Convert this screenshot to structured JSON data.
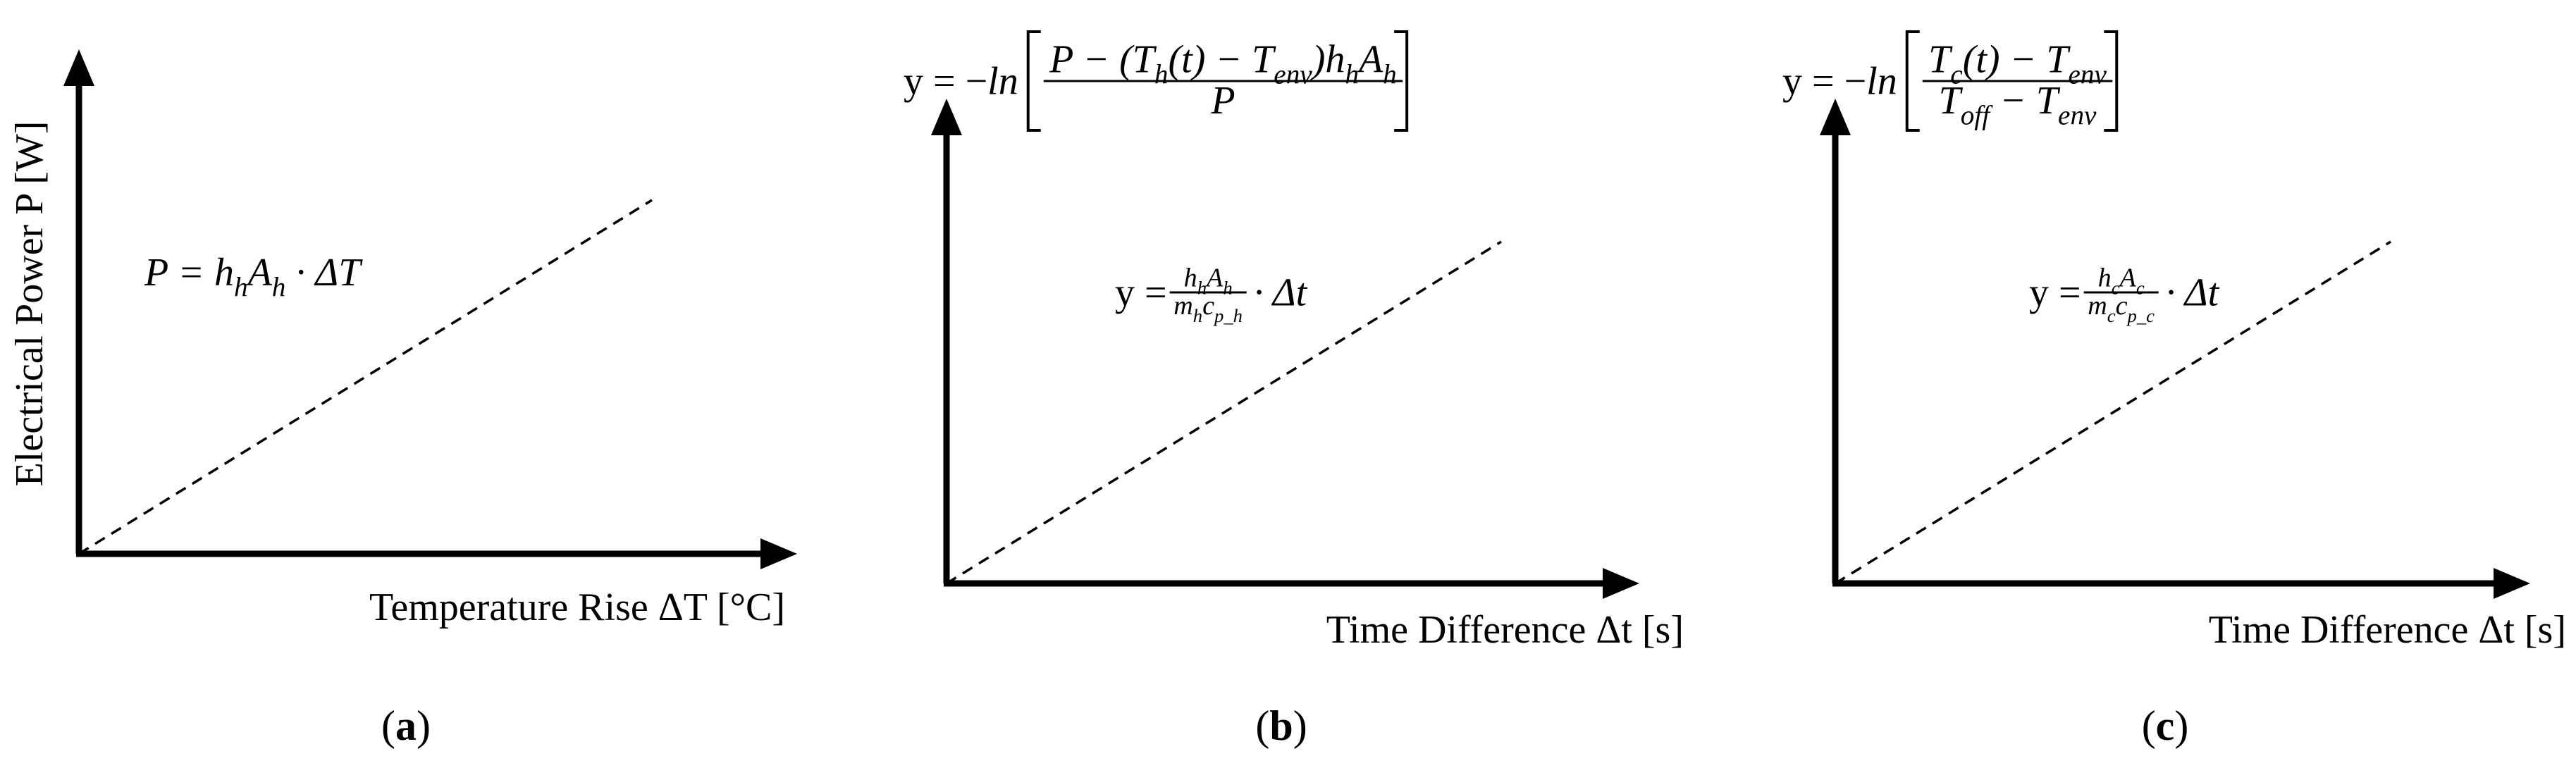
{
  "panels": [
    {
      "y_label": "Electrical Power P [W]",
      "x_label": "Temperature Rise ΔT [°C]",
      "equation": [
        "P = h",
        "h",
        "A",
        "h",
        " · ΔT"
      ],
      "caption": [
        "(",
        "a",
        ")"
      ]
    },
    {
      "x_label": "Time Difference Δt [s]",
      "top_equation": {
        "lhs": "y = −",
        "fn": "ln",
        "numerator": [
          "P − (T",
          "h",
          "(t) − T",
          "env",
          ")h",
          "h",
          "A",
          "h"
        ],
        "denominator": [
          "P"
        ]
      },
      "equation": {
        "lhs": "y =",
        "numerator": [
          "h",
          "h",
          "A",
          "h"
        ],
        "denominator": [
          "m",
          "h",
          "c",
          "p_h"
        ],
        "rhs": "· Δt"
      },
      "caption": [
        "(",
        "b",
        ")"
      ]
    },
    {
      "x_label": "Time Difference Δt [s]",
      "top_equation": {
        "lhs": "y = −",
        "fn": "ln",
        "numerator": [
          "T",
          "c",
          "(t) − T",
          "env"
        ],
        "denominator": [
          "T",
          "off",
          " − T",
          "env"
        ]
      },
      "equation": {
        "lhs": "y =",
        "numerator": [
          "h",
          "c",
          "A",
          "c"
        ],
        "denominator": [
          "m",
          "c",
          "c",
          "p_c"
        ],
        "rhs": "· Δt"
      },
      "caption": [
        "(",
        "c",
        ")"
      ]
    }
  ]
}
